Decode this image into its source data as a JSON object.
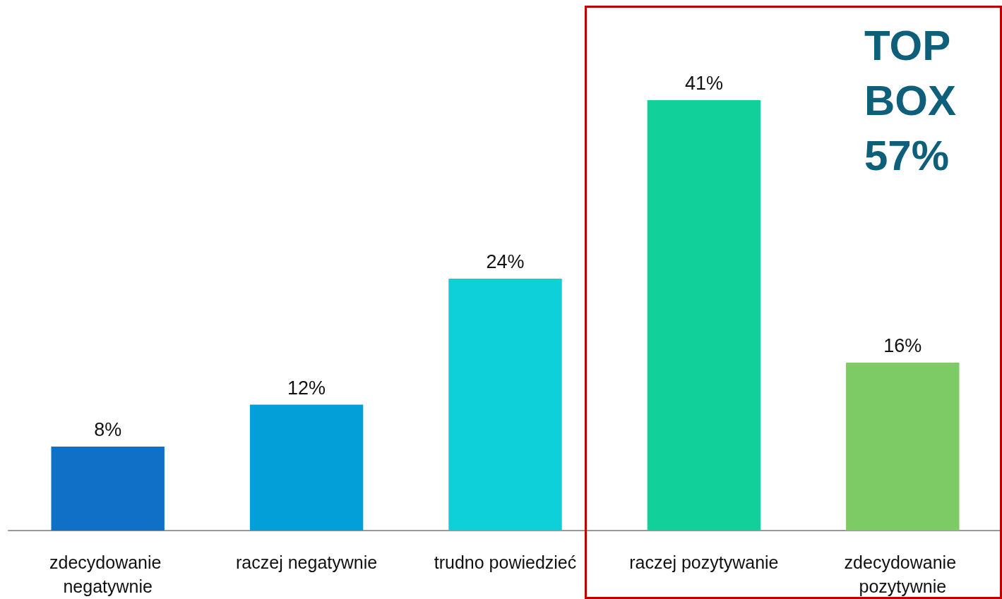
{
  "chart_data": {
    "type": "bar",
    "categories": [
      "zdecydowanie negatywnie",
      "raczej negatywnie",
      "trudno powiedzieć",
      "raczej pozytywanie",
      "zdecydowanie pozytywnie"
    ],
    "values": [
      8,
      12,
      24,
      41,
      16
    ],
    "colors": [
      "#1070c8",
      "#039fd8",
      "#0dd0d8",
      "#12d09a",
      "#7dcb64"
    ],
    "value_labels": [
      "8%",
      "12%",
      "24%",
      "41%",
      "16%"
    ],
    "annotations": [
      "TOP BOX 57%"
    ]
  }
}
